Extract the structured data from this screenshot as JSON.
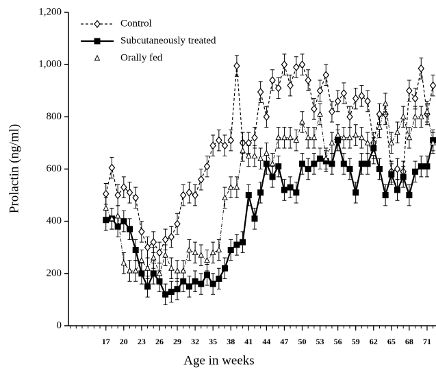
{
  "chart_data": {
    "type": "line",
    "xlabel": "Age in weeks",
    "ylabel": "Prolactin (ng/ml)",
    "x": [
      17,
      18,
      19,
      20,
      21,
      22,
      23,
      24,
      25,
      26,
      27,
      28,
      29,
      30,
      31,
      32,
      33,
      34,
      35,
      36,
      37,
      38,
      39,
      40,
      41,
      42,
      43,
      44,
      45,
      46,
      47,
      48,
      49,
      50,
      51,
      52,
      53,
      54,
      55,
      56,
      57,
      58,
      59,
      60,
      61,
      62,
      63,
      64,
      65,
      66,
      67,
      68,
      69,
      70,
      71,
      72
    ],
    "series": [
      {
        "name": "Control",
        "color": "#000000",
        "line_style": "dashed",
        "marker": "diamond",
        "error": 40,
        "values": [
          505,
          605,
          500,
          530,
          510,
          490,
          360,
          300,
          320,
          280,
          330,
          340,
          390,
          500,
          510,
          500,
          560,
          610,
          690,
          710,
          690,
          710,
          995,
          700,
          700,
          720,
          895,
          800,
          940,
          910,
          1000,
          920,
          990,
          1000,
          940,
          830,
          900,
          960,
          820,
          860,
          890,
          800,
          870,
          880,
          860,
          700,
          810,
          810,
          590,
          600,
          590,
          900,
          870,
          985,
          810,
          920
        ]
      },
      {
        "name": "Subcutaneously treated",
        "color": "#000000",
        "line_style": "solid",
        "marker": "square",
        "error": 40,
        "values": [
          405,
          410,
          380,
          400,
          370,
          290,
          200,
          150,
          200,
          170,
          120,
          130,
          140,
          170,
          150,
          170,
          160,
          195,
          160,
          180,
          220,
          290,
          310,
          320,
          500,
          410,
          510,
          620,
          570,
          610,
          520,
          530,
          510,
          620,
          600,
          620,
          640,
          630,
          620,
          710,
          620,
          600,
          510,
          620,
          620,
          680,
          600,
          500,
          580,
          520,
          570,
          500,
          590,
          610,
          610,
          710
        ]
      },
      {
        "name": "Orally fed",
        "color": "#000000",
        "line_style": "dashdot",
        "marker": "triangle",
        "error": 40,
        "values": [
          450,
          410,
          420,
          240,
          210,
          210,
          250,
          220,
          260,
          200,
          270,
          220,
          210,
          210,
          290,
          280,
          270,
          250,
          280,
          290,
          490,
          530,
          530,
          670,
          650,
          650,
          640,
          660,
          620,
          720,
          720,
          720,
          710,
          780,
          720,
          720,
          810,
          640,
          700,
          730,
          720,
          720,
          730,
          720,
          700,
          660,
          760,
          850,
          700,
          740,
          800,
          720,
          800,
          800,
          820,
          700
        ]
      }
    ],
    "xlim": [
      10.7,
      72.5
    ],
    "xticks": [
      17,
      20,
      23,
      26,
      29,
      32,
      35,
      38,
      41,
      44,
      47,
      50,
      53,
      56,
      59,
      62,
      65,
      68,
      71
    ],
    "minor_tick_step": 1,
    "ylim": [
      0,
      1200
    ],
    "yticks": [
      0,
      200,
      400,
      600,
      800,
      {
        "value": 1000,
        "label": "1,000"
      },
      {
        "value": 1200,
        "label": "1,200"
      }
    ],
    "legend": "upper left"
  }
}
